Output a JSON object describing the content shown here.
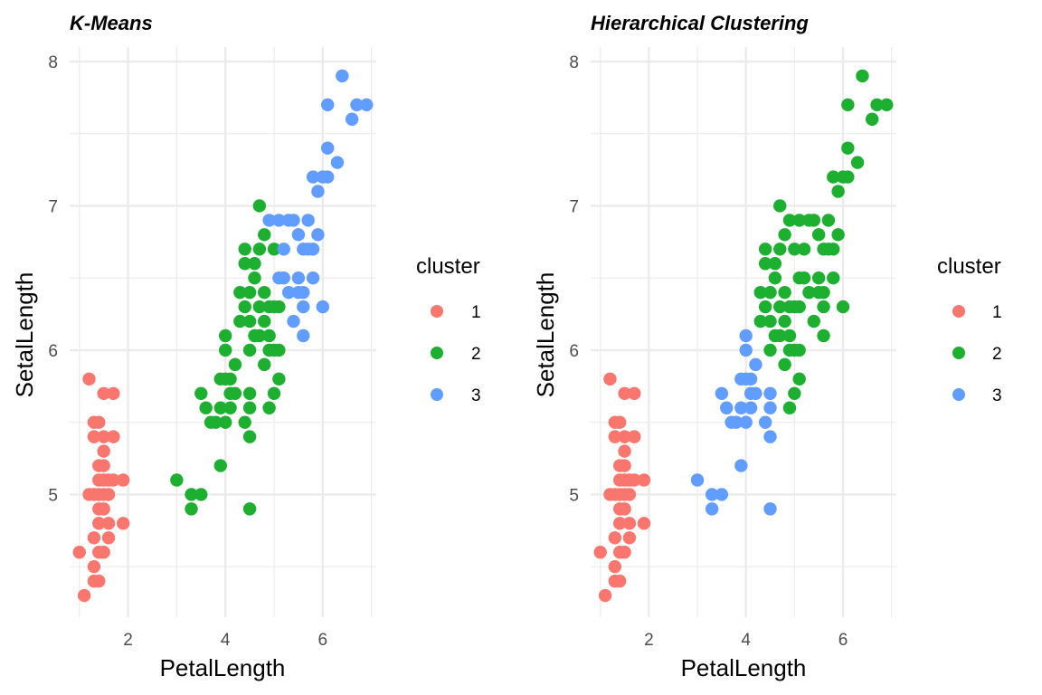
{
  "colors": {
    "1": "#F8766D",
    "2": "#1DB030",
    "3": "#619CFF",
    "grid": "#ebebeb"
  },
  "chart_data": [
    {
      "type": "scatter",
      "title": "K-Means",
      "xlabel": "PetalLength",
      "ylabel": "SetalLength",
      "xlim": [
        0.8,
        7.1
      ],
      "ylim": [
        4.15,
        8.1
      ],
      "xticks": [
        "2",
        "4",
        "6"
      ],
      "yticks": [
        "5",
        "6",
        "7",
        "8"
      ],
      "grid": true,
      "legend": {
        "title": "cluster",
        "position": "right",
        "labels": [
          "1",
          "2",
          "3"
        ]
      },
      "points": [
        [
          1.1,
          4.3,
          1
        ],
        [
          1.0,
          4.6,
          1
        ],
        [
          1.2,
          5.0,
          1
        ],
        [
          1.2,
          5.8,
          1
        ],
        [
          1.3,
          4.4,
          1
        ],
        [
          1.3,
          4.5,
          1
        ],
        [
          1.3,
          4.7,
          1
        ],
        [
          1.3,
          5.0,
          1
        ],
        [
          1.3,
          5.4,
          1
        ],
        [
          1.3,
          5.5,
          1
        ],
        [
          1.4,
          4.4,
          1
        ],
        [
          1.4,
          4.6,
          1
        ],
        [
          1.4,
          4.8,
          1
        ],
        [
          1.4,
          4.9,
          1
        ],
        [
          1.4,
          5.0,
          1
        ],
        [
          1.4,
          5.1,
          1
        ],
        [
          1.4,
          5.2,
          1
        ],
        [
          1.4,
          5.5,
          1
        ],
        [
          1.5,
          4.6,
          1
        ],
        [
          1.5,
          4.9,
          1
        ],
        [
          1.5,
          5.0,
          1
        ],
        [
          1.5,
          5.1,
          1
        ],
        [
          1.5,
          5.2,
          1
        ],
        [
          1.5,
          5.3,
          1
        ],
        [
          1.5,
          5.4,
          1
        ],
        [
          1.5,
          5.7,
          1
        ],
        [
          1.6,
          4.7,
          1
        ],
        [
          1.6,
          4.8,
          1
        ],
        [
          1.6,
          5.0,
          1
        ],
        [
          1.6,
          5.1,
          1
        ],
        [
          1.7,
          5.1,
          1
        ],
        [
          1.7,
          5.4,
          1
        ],
        [
          1.7,
          5.7,
          1
        ],
        [
          1.9,
          4.8,
          1
        ],
        [
          1.9,
          5.1,
          1
        ],
        [
          3.0,
          5.1,
          2
        ],
        [
          3.3,
          4.9,
          2
        ],
        [
          3.3,
          5.0,
          2
        ],
        [
          3.5,
          5.0,
          2
        ],
        [
          3.5,
          5.7,
          2
        ],
        [
          3.6,
          5.6,
          2
        ],
        [
          3.7,
          5.5,
          2
        ],
        [
          3.8,
          5.5,
          2
        ],
        [
          3.9,
          5.2,
          2
        ],
        [
          3.9,
          5.6,
          2
        ],
        [
          3.9,
          5.8,
          2
        ],
        [
          4.0,
          5.5,
          2
        ],
        [
          4.0,
          5.8,
          2
        ],
        [
          4.0,
          6.0,
          2
        ],
        [
          4.0,
          6.1,
          2
        ],
        [
          4.1,
          5.6,
          2
        ],
        [
          4.1,
          5.7,
          2
        ],
        [
          4.1,
          5.8,
          2
        ],
        [
          4.2,
          5.7,
          2
        ],
        [
          4.2,
          5.9,
          2
        ],
        [
          4.3,
          6.2,
          2
        ],
        [
          4.3,
          6.4,
          2
        ],
        [
          4.4,
          6.3,
          2
        ],
        [
          4.4,
          6.6,
          2
        ],
        [
          4.4,
          6.7,
          2
        ],
        [
          4.4,
          5.5,
          2
        ],
        [
          4.5,
          4.9,
          2
        ],
        [
          4.5,
          5.4,
          2
        ],
        [
          4.5,
          5.6,
          2
        ],
        [
          4.5,
          5.7,
          2
        ],
        [
          4.5,
          6.0,
          2
        ],
        [
          4.5,
          6.2,
          2
        ],
        [
          4.5,
          6.4,
          2
        ],
        [
          4.6,
          6.1,
          2
        ],
        [
          4.6,
          6.6,
          2
        ],
        [
          4.7,
          6.1,
          2
        ],
        [
          4.7,
          6.3,
          2
        ],
        [
          4.7,
          6.7,
          2
        ],
        [
          4.7,
          7.0,
          2
        ],
        [
          4.8,
          5.9,
          2
        ],
        [
          4.8,
          6.2,
          2
        ],
        [
          4.8,
          6.8,
          2
        ],
        [
          4.9,
          5.6,
          2
        ],
        [
          4.9,
          6.0,
          2
        ],
        [
          4.9,
          6.1,
          2
        ],
        [
          4.9,
          6.3,
          2
        ],
        [
          5.0,
          5.7,
          2
        ],
        [
          5.0,
          6.0,
          2
        ],
        [
          5.0,
          6.3,
          2
        ],
        [
          5.0,
          6.7,
          2
        ],
        [
          5.1,
          5.8,
          2
        ],
        [
          5.1,
          6.0,
          2
        ],
        [
          5.1,
          6.3,
          2
        ],
        [
          4.6,
          6.5,
          2
        ],
        [
          4.8,
          6.4,
          2
        ],
        [
          4.9,
          6.9,
          3
        ],
        [
          5.1,
          6.5,
          3
        ],
        [
          5.1,
          6.9,
          3
        ],
        [
          5.2,
          6.5,
          3
        ],
        [
          5.3,
          6.4,
          3
        ],
        [
          5.4,
          6.2,
          3
        ],
        [
          5.4,
          6.9,
          3
        ],
        [
          5.5,
          6.4,
          3
        ],
        [
          5.5,
          6.5,
          3
        ],
        [
          5.5,
          6.8,
          3
        ],
        [
          5.6,
          6.1,
          3
        ],
        [
          5.6,
          6.3,
          3
        ],
        [
          5.6,
          6.4,
          3
        ],
        [
          5.6,
          6.7,
          3
        ],
        [
          5.7,
          6.7,
          3
        ],
        [
          5.7,
          6.9,
          3
        ],
        [
          5.8,
          6.5,
          3
        ],
        [
          5.8,
          6.7,
          3
        ],
        [
          5.8,
          7.2,
          3
        ],
        [
          5.9,
          6.8,
          3
        ],
        [
          5.9,
          7.1,
          3
        ],
        [
          6.0,
          6.3,
          3
        ],
        [
          6.0,
          7.2,
          3
        ],
        [
          6.1,
          7.2,
          3
        ],
        [
          6.1,
          7.4,
          3
        ],
        [
          6.1,
          7.7,
          3
        ],
        [
          6.3,
          7.3,
          3
        ],
        [
          6.4,
          7.9,
          3
        ],
        [
          6.6,
          7.6,
          3
        ],
        [
          6.7,
          7.7,
          3
        ],
        [
          6.9,
          7.7,
          3
        ],
        [
          5.3,
          6.9,
          3
        ],
        [
          5.2,
          6.7,
          3
        ]
      ]
    },
    {
      "type": "scatter",
      "title": "Hierarchical Clustering",
      "xlabel": "PetalLength",
      "ylabel": "SetalLength",
      "xlim": [
        0.8,
        7.1
      ],
      "ylim": [
        4.15,
        8.1
      ],
      "xticks": [
        "2",
        "4",
        "6"
      ],
      "yticks": [
        "5",
        "6",
        "7",
        "8"
      ],
      "grid": true,
      "legend": {
        "title": "cluster",
        "position": "right",
        "labels": [
          "1",
          "2",
          "3"
        ]
      },
      "points": [
        [
          1.1,
          4.3,
          1
        ],
        [
          1.0,
          4.6,
          1
        ],
        [
          1.2,
          5.0,
          1
        ],
        [
          1.2,
          5.8,
          1
        ],
        [
          1.3,
          4.4,
          1
        ],
        [
          1.3,
          4.5,
          1
        ],
        [
          1.3,
          4.7,
          1
        ],
        [
          1.3,
          5.0,
          1
        ],
        [
          1.3,
          5.4,
          1
        ],
        [
          1.3,
          5.5,
          1
        ],
        [
          1.4,
          4.4,
          1
        ],
        [
          1.4,
          4.6,
          1
        ],
        [
          1.4,
          4.8,
          1
        ],
        [
          1.4,
          4.9,
          1
        ],
        [
          1.4,
          5.0,
          1
        ],
        [
          1.4,
          5.1,
          1
        ],
        [
          1.4,
          5.2,
          1
        ],
        [
          1.4,
          5.5,
          1
        ],
        [
          1.5,
          4.6,
          1
        ],
        [
          1.5,
          4.9,
          1
        ],
        [
          1.5,
          5.0,
          1
        ],
        [
          1.5,
          5.1,
          1
        ],
        [
          1.5,
          5.2,
          1
        ],
        [
          1.5,
          5.3,
          1
        ],
        [
          1.5,
          5.4,
          1
        ],
        [
          1.5,
          5.7,
          1
        ],
        [
          1.6,
          4.7,
          1
        ],
        [
          1.6,
          4.8,
          1
        ],
        [
          1.6,
          5.0,
          1
        ],
        [
          1.6,
          5.1,
          1
        ],
        [
          1.7,
          5.1,
          1
        ],
        [
          1.7,
          5.4,
          1
        ],
        [
          1.7,
          5.7,
          1
        ],
        [
          1.9,
          4.8,
          1
        ],
        [
          1.9,
          5.1,
          1
        ],
        [
          3.0,
          5.1,
          3
        ],
        [
          3.3,
          4.9,
          3
        ],
        [
          3.3,
          5.0,
          3
        ],
        [
          3.5,
          5.0,
          3
        ],
        [
          3.5,
          5.7,
          3
        ],
        [
          3.6,
          5.6,
          3
        ],
        [
          3.7,
          5.5,
          3
        ],
        [
          3.8,
          5.5,
          3
        ],
        [
          3.9,
          5.2,
          3
        ],
        [
          3.9,
          5.6,
          3
        ],
        [
          3.9,
          5.8,
          3
        ],
        [
          4.0,
          5.5,
          3
        ],
        [
          4.0,
          5.8,
          3
        ],
        [
          4.0,
          6.0,
          3
        ],
        [
          4.0,
          6.1,
          3
        ],
        [
          4.1,
          5.6,
          3
        ],
        [
          4.1,
          5.7,
          3
        ],
        [
          4.1,
          5.8,
          3
        ],
        [
          4.2,
          5.7,
          3
        ],
        [
          4.2,
          5.9,
          3
        ],
        [
          4.4,
          5.5,
          3
        ],
        [
          4.5,
          4.9,
          3
        ],
        [
          4.5,
          5.4,
          3
        ],
        [
          4.5,
          5.6,
          3
        ],
        [
          4.5,
          5.7,
          3
        ],
        [
          4.3,
          6.2,
          2
        ],
        [
          4.3,
          6.4,
          2
        ],
        [
          4.4,
          6.3,
          2
        ],
        [
          4.4,
          6.6,
          2
        ],
        [
          4.4,
          6.7,
          2
        ],
        [
          4.5,
          6.0,
          2
        ],
        [
          4.5,
          6.2,
          2
        ],
        [
          4.5,
          6.4,
          2
        ],
        [
          4.6,
          6.1,
          2
        ],
        [
          4.6,
          6.6,
          2
        ],
        [
          4.7,
          6.1,
          2
        ],
        [
          4.7,
          6.3,
          2
        ],
        [
          4.7,
          6.7,
          2
        ],
        [
          4.7,
          7.0,
          2
        ],
        [
          4.8,
          5.9,
          2
        ],
        [
          4.8,
          6.2,
          2
        ],
        [
          4.8,
          6.8,
          2
        ],
        [
          4.9,
          5.6,
          2
        ],
        [
          4.9,
          6.0,
          2
        ],
        [
          4.9,
          6.1,
          2
        ],
        [
          4.9,
          6.3,
          2
        ],
        [
          5.0,
          5.7,
          2
        ],
        [
          5.0,
          6.0,
          2
        ],
        [
          5.0,
          6.3,
          2
        ],
        [
          5.0,
          6.7,
          2
        ],
        [
          5.1,
          5.8,
          2
        ],
        [
          5.1,
          6.0,
          2
        ],
        [
          5.1,
          6.3,
          2
        ],
        [
          4.6,
          6.5,
          2
        ],
        [
          4.8,
          6.4,
          2
        ],
        [
          4.9,
          6.9,
          2
        ],
        [
          5.1,
          6.5,
          2
        ],
        [
          5.1,
          6.9,
          2
        ],
        [
          5.2,
          6.5,
          2
        ],
        [
          5.3,
          6.4,
          2
        ],
        [
          5.4,
          6.2,
          2
        ],
        [
          5.4,
          6.9,
          2
        ],
        [
          5.5,
          6.4,
          2
        ],
        [
          5.5,
          6.5,
          2
        ],
        [
          5.5,
          6.8,
          2
        ],
        [
          5.6,
          6.1,
          2
        ],
        [
          5.6,
          6.3,
          2
        ],
        [
          5.6,
          6.4,
          2
        ],
        [
          5.6,
          6.7,
          2
        ],
        [
          5.7,
          6.7,
          2
        ],
        [
          5.7,
          6.9,
          2
        ],
        [
          5.8,
          6.5,
          2
        ],
        [
          5.8,
          6.7,
          2
        ],
        [
          5.8,
          7.2,
          2
        ],
        [
          5.9,
          6.8,
          2
        ],
        [
          5.9,
          7.1,
          2
        ],
        [
          6.0,
          6.3,
          2
        ],
        [
          6.0,
          7.2,
          2
        ],
        [
          6.1,
          7.2,
          2
        ],
        [
          6.1,
          7.4,
          2
        ],
        [
          6.1,
          7.7,
          2
        ],
        [
          6.3,
          7.3,
          2
        ],
        [
          6.4,
          7.9,
          2
        ],
        [
          6.6,
          7.6,
          2
        ],
        [
          6.7,
          7.7,
          2
        ],
        [
          6.9,
          7.7,
          2
        ],
        [
          5.3,
          6.9,
          2
        ],
        [
          5.2,
          6.7,
          2
        ]
      ]
    }
  ]
}
